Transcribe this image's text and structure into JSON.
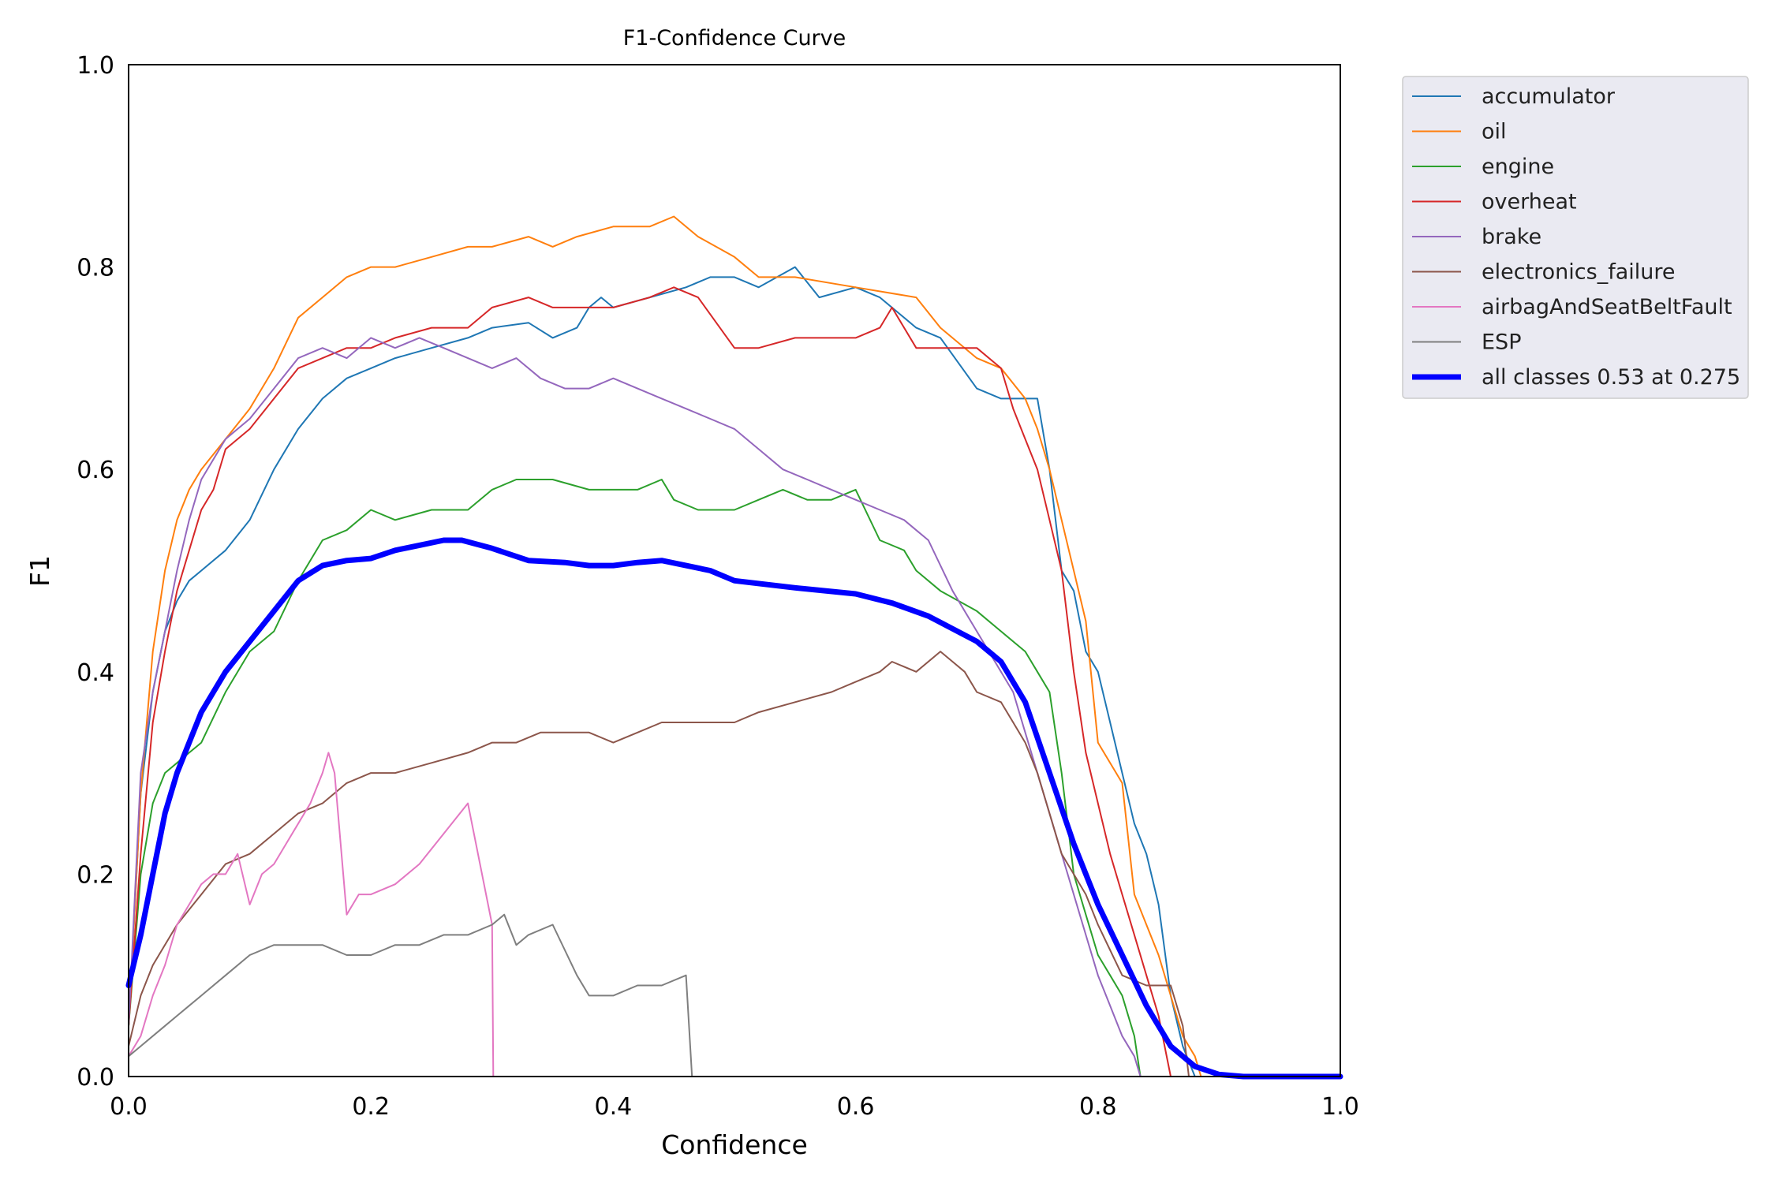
{
  "chart_data": {
    "type": "line",
    "title": "F1-Confidence Curve",
    "xlabel": "Confidence",
    "ylabel": "F1",
    "xlim": [
      0,
      1
    ],
    "ylim": [
      0,
      1
    ],
    "xticks": [
      "0.0",
      "0.2",
      "0.4",
      "0.6",
      "0.8",
      "1.0"
    ],
    "yticks": [
      "0.0",
      "0.2",
      "0.4",
      "0.6",
      "0.8",
      "1.0"
    ],
    "grid": false,
    "legend_position": "outside-top-right",
    "series": [
      {
        "name": "accumulator",
        "color": "#1f77b4",
        "width": 2,
        "x": [
          0,
          0.01,
          0.02,
          0.03,
          0.04,
          0.05,
          0.06,
          0.08,
          0.1,
          0.12,
          0.14,
          0.16,
          0.18,
          0.2,
          0.22,
          0.25,
          0.28,
          0.3,
          0.33,
          0.35,
          0.37,
          0.38,
          0.39,
          0.4,
          0.43,
          0.46,
          0.48,
          0.5,
          0.52,
          0.55,
          0.57,
          0.6,
          0.62,
          0.65,
          0.67,
          0.7,
          0.72,
          0.75,
          0.76,
          0.77,
          0.78,
          0.79,
          0.8,
          0.81,
          0.82,
          0.83,
          0.84,
          0.85,
          0.86,
          0.87,
          0.88,
          0.9,
          1.0
        ],
        "y": [
          0.05,
          0.28,
          0.38,
          0.44,
          0.47,
          0.49,
          0.5,
          0.52,
          0.55,
          0.6,
          0.64,
          0.67,
          0.69,
          0.7,
          0.71,
          0.72,
          0.73,
          0.74,
          0.745,
          0.73,
          0.74,
          0.76,
          0.77,
          0.76,
          0.77,
          0.78,
          0.79,
          0.79,
          0.78,
          0.8,
          0.77,
          0.78,
          0.77,
          0.74,
          0.73,
          0.68,
          0.67,
          0.67,
          0.6,
          0.5,
          0.48,
          0.42,
          0.4,
          0.35,
          0.3,
          0.25,
          0.22,
          0.17,
          0.08,
          0.03,
          0.0,
          0.0,
          0.0
        ]
      },
      {
        "name": "oil",
        "color": "#ff7f0e",
        "width": 2,
        "x": [
          0,
          0.01,
          0.02,
          0.03,
          0.04,
          0.05,
          0.06,
          0.08,
          0.1,
          0.12,
          0.14,
          0.16,
          0.18,
          0.2,
          0.22,
          0.25,
          0.28,
          0.3,
          0.33,
          0.35,
          0.37,
          0.4,
          0.43,
          0.45,
          0.47,
          0.5,
          0.52,
          0.55,
          0.6,
          0.65,
          0.67,
          0.7,
          0.72,
          0.74,
          0.75,
          0.76,
          0.77,
          0.78,
          0.79,
          0.8,
          0.82,
          0.83,
          0.84,
          0.85,
          0.86,
          0.87,
          0.88,
          0.885,
          1.0
        ],
        "y": [
          0.05,
          0.28,
          0.42,
          0.5,
          0.55,
          0.58,
          0.6,
          0.63,
          0.66,
          0.7,
          0.75,
          0.77,
          0.79,
          0.8,
          0.8,
          0.81,
          0.82,
          0.82,
          0.83,
          0.82,
          0.83,
          0.84,
          0.84,
          0.85,
          0.83,
          0.81,
          0.79,
          0.79,
          0.78,
          0.77,
          0.74,
          0.71,
          0.7,
          0.67,
          0.64,
          0.6,
          0.55,
          0.5,
          0.45,
          0.33,
          0.29,
          0.18,
          0.15,
          0.12,
          0.08,
          0.04,
          0.02,
          0.0,
          0.0
        ]
      },
      {
        "name": "engine",
        "color": "#2ca02c",
        "width": 2,
        "x": [
          0,
          0.01,
          0.02,
          0.03,
          0.04,
          0.05,
          0.06,
          0.08,
          0.1,
          0.12,
          0.14,
          0.16,
          0.18,
          0.2,
          0.22,
          0.25,
          0.28,
          0.3,
          0.32,
          0.35,
          0.38,
          0.4,
          0.42,
          0.44,
          0.45,
          0.47,
          0.5,
          0.52,
          0.54,
          0.56,
          0.58,
          0.6,
          0.62,
          0.64,
          0.65,
          0.67,
          0.7,
          0.72,
          0.74,
          0.75,
          0.76,
          0.77,
          0.78,
          0.79,
          0.8,
          0.81,
          0.82,
          0.83,
          0.835,
          1.0
        ],
        "y": [
          0.05,
          0.2,
          0.27,
          0.3,
          0.31,
          0.32,
          0.33,
          0.38,
          0.42,
          0.44,
          0.49,
          0.53,
          0.54,
          0.56,
          0.55,
          0.56,
          0.56,
          0.58,
          0.59,
          0.59,
          0.58,
          0.58,
          0.58,
          0.59,
          0.57,
          0.56,
          0.56,
          0.57,
          0.58,
          0.57,
          0.57,
          0.58,
          0.53,
          0.52,
          0.5,
          0.48,
          0.46,
          0.44,
          0.42,
          0.4,
          0.38,
          0.3,
          0.2,
          0.16,
          0.12,
          0.1,
          0.08,
          0.04,
          0.0,
          0.0
        ]
      },
      {
        "name": "overheat",
        "color": "#d62728",
        "width": 2,
        "x": [
          0,
          0.01,
          0.02,
          0.03,
          0.04,
          0.05,
          0.06,
          0.07,
          0.08,
          0.1,
          0.12,
          0.14,
          0.16,
          0.18,
          0.2,
          0.22,
          0.25,
          0.28,
          0.3,
          0.33,
          0.35,
          0.37,
          0.4,
          0.43,
          0.45,
          0.47,
          0.5,
          0.52,
          0.55,
          0.58,
          0.6,
          0.62,
          0.63,
          0.65,
          0.68,
          0.7,
          0.72,
          0.73,
          0.74,
          0.75,
          0.76,
          0.77,
          0.78,
          0.79,
          0.8,
          0.81,
          0.82,
          0.83,
          0.84,
          0.85,
          0.855,
          0.86,
          1.0
        ],
        "y": [
          0.05,
          0.22,
          0.35,
          0.42,
          0.48,
          0.52,
          0.56,
          0.58,
          0.62,
          0.64,
          0.67,
          0.7,
          0.71,
          0.72,
          0.72,
          0.73,
          0.74,
          0.74,
          0.76,
          0.77,
          0.76,
          0.76,
          0.76,
          0.77,
          0.78,
          0.77,
          0.72,
          0.72,
          0.73,
          0.73,
          0.73,
          0.74,
          0.76,
          0.72,
          0.72,
          0.72,
          0.7,
          0.66,
          0.63,
          0.6,
          0.55,
          0.5,
          0.4,
          0.32,
          0.27,
          0.22,
          0.18,
          0.14,
          0.1,
          0.06,
          0.03,
          0.0,
          0.0
        ]
      },
      {
        "name": "brake",
        "color": "#9467bd",
        "width": 2,
        "x": [
          0,
          0.01,
          0.02,
          0.03,
          0.04,
          0.05,
          0.06,
          0.08,
          0.1,
          0.12,
          0.14,
          0.16,
          0.18,
          0.2,
          0.22,
          0.24,
          0.26,
          0.28,
          0.3,
          0.32,
          0.34,
          0.36,
          0.38,
          0.4,
          0.42,
          0.44,
          0.46,
          0.48,
          0.5,
          0.52,
          0.54,
          0.56,
          0.58,
          0.6,
          0.62,
          0.64,
          0.65,
          0.66,
          0.68,
          0.7,
          0.72,
          0.73,
          0.74,
          0.75,
          0.76,
          0.77,
          0.78,
          0.79,
          0.8,
          0.81,
          0.82,
          0.83,
          0.835,
          1.0
        ],
        "y": [
          0.05,
          0.3,
          0.38,
          0.44,
          0.5,
          0.55,
          0.59,
          0.63,
          0.65,
          0.68,
          0.71,
          0.72,
          0.71,
          0.73,
          0.72,
          0.73,
          0.72,
          0.71,
          0.7,
          0.71,
          0.69,
          0.68,
          0.68,
          0.69,
          0.68,
          0.67,
          0.66,
          0.65,
          0.64,
          0.62,
          0.6,
          0.59,
          0.58,
          0.57,
          0.56,
          0.55,
          0.54,
          0.53,
          0.48,
          0.44,
          0.4,
          0.38,
          0.34,
          0.3,
          0.26,
          0.22,
          0.18,
          0.14,
          0.1,
          0.07,
          0.04,
          0.02,
          0.0,
          0.0
        ]
      },
      {
        "name": "electronics_failure",
        "color": "#8c564b",
        "width": 2,
        "x": [
          0,
          0.01,
          0.02,
          0.04,
          0.06,
          0.08,
          0.1,
          0.12,
          0.14,
          0.16,
          0.18,
          0.2,
          0.22,
          0.25,
          0.28,
          0.3,
          0.32,
          0.34,
          0.36,
          0.38,
          0.4,
          0.42,
          0.44,
          0.46,
          0.48,
          0.5,
          0.52,
          0.55,
          0.58,
          0.6,
          0.62,
          0.63,
          0.65,
          0.67,
          0.68,
          0.69,
          0.7,
          0.72,
          0.73,
          0.74,
          0.75,
          0.76,
          0.77,
          0.78,
          0.79,
          0.8,
          0.82,
          0.84,
          0.86,
          0.87,
          0.875,
          1.0
        ],
        "y": [
          0.03,
          0.08,
          0.11,
          0.15,
          0.18,
          0.21,
          0.22,
          0.24,
          0.26,
          0.27,
          0.29,
          0.3,
          0.3,
          0.31,
          0.32,
          0.33,
          0.33,
          0.34,
          0.34,
          0.34,
          0.33,
          0.34,
          0.35,
          0.35,
          0.35,
          0.35,
          0.36,
          0.37,
          0.38,
          0.39,
          0.4,
          0.41,
          0.4,
          0.42,
          0.41,
          0.4,
          0.38,
          0.37,
          0.35,
          0.33,
          0.3,
          0.26,
          0.22,
          0.2,
          0.18,
          0.15,
          0.1,
          0.09,
          0.09,
          0.05,
          0.0,
          0.0
        ]
      },
      {
        "name": "airbagAndSeatBeltFault",
        "color": "#e377c2",
        "width": 2,
        "x": [
          0,
          0.01,
          0.02,
          0.03,
          0.04,
          0.05,
          0.06,
          0.07,
          0.08,
          0.09,
          0.1,
          0.11,
          0.12,
          0.13,
          0.14,
          0.15,
          0.16,
          0.165,
          0.17,
          0.18,
          0.19,
          0.2,
          0.22,
          0.24,
          0.26,
          0.28,
          0.3,
          0.301,
          1.0
        ],
        "y": [
          0.02,
          0.04,
          0.08,
          0.11,
          0.15,
          0.17,
          0.19,
          0.2,
          0.2,
          0.22,
          0.17,
          0.2,
          0.21,
          0.23,
          0.25,
          0.27,
          0.3,
          0.32,
          0.3,
          0.16,
          0.18,
          0.18,
          0.19,
          0.21,
          0.24,
          0.27,
          0.15,
          0.0,
          0.0
        ]
      },
      {
        "name": "ESP",
        "color": "#7f7f7f",
        "width": 2,
        "x": [
          0,
          0.01,
          0.02,
          0.03,
          0.04,
          0.05,
          0.06,
          0.08,
          0.1,
          0.12,
          0.14,
          0.16,
          0.18,
          0.2,
          0.22,
          0.24,
          0.26,
          0.28,
          0.3,
          0.31,
          0.32,
          0.33,
          0.35,
          0.37,
          0.38,
          0.4,
          0.42,
          0.44,
          0.46,
          0.465,
          1.0
        ],
        "y": [
          0.02,
          0.03,
          0.04,
          0.05,
          0.06,
          0.07,
          0.08,
          0.1,
          0.12,
          0.13,
          0.13,
          0.13,
          0.12,
          0.12,
          0.13,
          0.13,
          0.14,
          0.14,
          0.15,
          0.16,
          0.13,
          0.14,
          0.15,
          0.1,
          0.08,
          0.08,
          0.09,
          0.09,
          0.1,
          0.0,
          0.0
        ]
      },
      {
        "name": "all classes 0.53 at 0.275",
        "color": "#0000ff",
        "width": 7,
        "x": [
          0,
          0.01,
          0.02,
          0.03,
          0.04,
          0.05,
          0.06,
          0.07,
          0.08,
          0.1,
          0.12,
          0.14,
          0.16,
          0.18,
          0.2,
          0.22,
          0.24,
          0.26,
          0.275,
          0.3,
          0.33,
          0.36,
          0.38,
          0.4,
          0.42,
          0.44,
          0.46,
          0.48,
          0.5,
          0.55,
          0.6,
          0.63,
          0.66,
          0.7,
          0.72,
          0.74,
          0.76,
          0.78,
          0.8,
          0.82,
          0.84,
          0.86,
          0.88,
          0.9,
          0.92,
          1.0
        ],
        "y": [
          0.09,
          0.14,
          0.2,
          0.26,
          0.3,
          0.33,
          0.36,
          0.38,
          0.4,
          0.43,
          0.46,
          0.49,
          0.505,
          0.51,
          0.512,
          0.52,
          0.525,
          0.53,
          0.53,
          0.522,
          0.51,
          0.508,
          0.505,
          0.505,
          0.508,
          0.51,
          0.505,
          0.5,
          0.49,
          0.483,
          0.477,
          0.468,
          0.455,
          0.43,
          0.41,
          0.37,
          0.3,
          0.23,
          0.17,
          0.12,
          0.07,
          0.03,
          0.01,
          0.002,
          0.0,
          0.0
        ]
      }
    ]
  }
}
